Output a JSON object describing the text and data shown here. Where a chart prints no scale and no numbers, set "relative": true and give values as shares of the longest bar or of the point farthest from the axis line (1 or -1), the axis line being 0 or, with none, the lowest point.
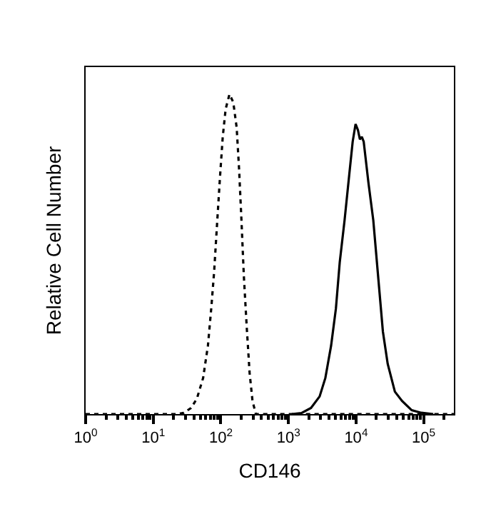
{
  "chart_data": {
    "type": "line",
    "xlabel": "CD146",
    "ylabel": "Relative Cell Number",
    "relative": true,
    "log": "x",
    "marker": "none",
    "xlim": [
      1,
      280000
    ],
    "xticks": [
      {
        "value": 1,
        "label": "10$^{0}$"
      },
      {
        "value": 10,
        "label": "10$^{1}$"
      },
      {
        "value": 100,
        "label": "10$^{2}$"
      },
      {
        "value": 1000,
        "label": "10$^{3}$"
      },
      {
        "value": 10000,
        "label": "10$^{4}$"
      },
      {
        "value": 100000,
        "label": "10$^{5}$"
      }
    ],
    "series": [
      {
        "color": "#000000",
        "line_style": "dotted",
        "x": [
          1,
          22.3,
          28.4,
          36.3,
          44.2,
          54.7,
          64.4,
          72.1,
          79.6,
          87.7,
          96.8,
          106.7,
          117.8,
          134.2,
          152.8,
          171.4,
          186.2,
          201.8,
          218.9,
          241.5,
          266.6,
          294,
          329.6,
          280000
        ],
        "values": [
          0,
          0,
          0.004,
          0.019,
          0.048,
          0.113,
          0.214,
          0.33,
          0.446,
          0.591,
          0.736,
          0.867,
          0.954,
          1,
          0.975,
          0.896,
          0.765,
          0.606,
          0.432,
          0.272,
          0.128,
          0.041,
          0,
          0
        ]
      },
      {
        "color": "#000000",
        "line_style": "solid",
        "x": [
          1122,
          1554,
          2154,
          2891,
          3516,
          4276,
          5036,
          5740,
          6761,
          7955,
          8917,
          9836,
          10670,
          11400,
          12160,
          12970,
          15280,
          17990,
          21190,
          24960,
          29380,
          37520,
          47960,
          66490,
          92200,
          138600
        ],
        "values": [
          0,
          0.003,
          0.019,
          0.055,
          0.113,
          0.214,
          0.33,
          0.475,
          0.606,
          0.751,
          0.852,
          0.907,
          0.888,
          0.859,
          0.867,
          0.852,
          0.722,
          0.606,
          0.432,
          0.258,
          0.157,
          0.07,
          0.041,
          0.012,
          0.004,
          0
        ]
      }
    ]
  }
}
